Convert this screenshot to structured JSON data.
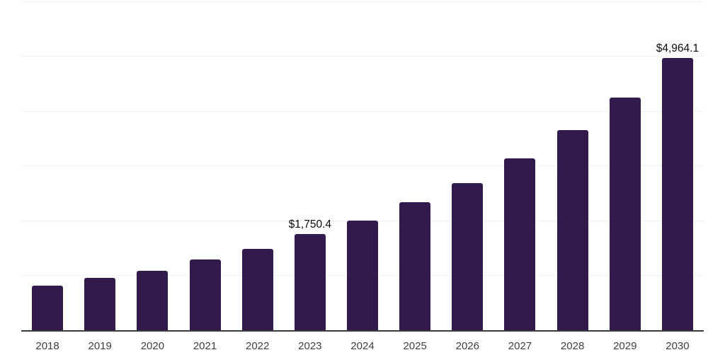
{
  "chart_data": {
    "type": "bar",
    "categories": [
      "2018",
      "2019",
      "2020",
      "2021",
      "2022",
      "2023",
      "2024",
      "2025",
      "2026",
      "2027",
      "2028",
      "2029",
      "2030"
    ],
    "values": [
      810,
      950,
      1090,
      1285,
      1490,
      1750.4,
      2005,
      2330,
      2690,
      3140,
      3655,
      4240,
      4964.1
    ],
    "annotations": [
      {
        "index": 5,
        "label": "$1,750.4"
      },
      {
        "index": 12,
        "label": "$4,964.1"
      }
    ],
    "title": "",
    "xlabel": "",
    "ylabel": "",
    "ylim": [
      0,
      6000
    ],
    "gridline_step": 1000,
    "grid": true,
    "legend_position": "none",
    "y_axis_labels_visible": false
  },
  "colors": {
    "bar": "#321a4d",
    "gridline": "#f1f1f3",
    "axis_line": "#3a3a3a",
    "tick_label": "#3f3f3f",
    "annotation_text": "#0a0a0a",
    "background": "#ffffff"
  }
}
